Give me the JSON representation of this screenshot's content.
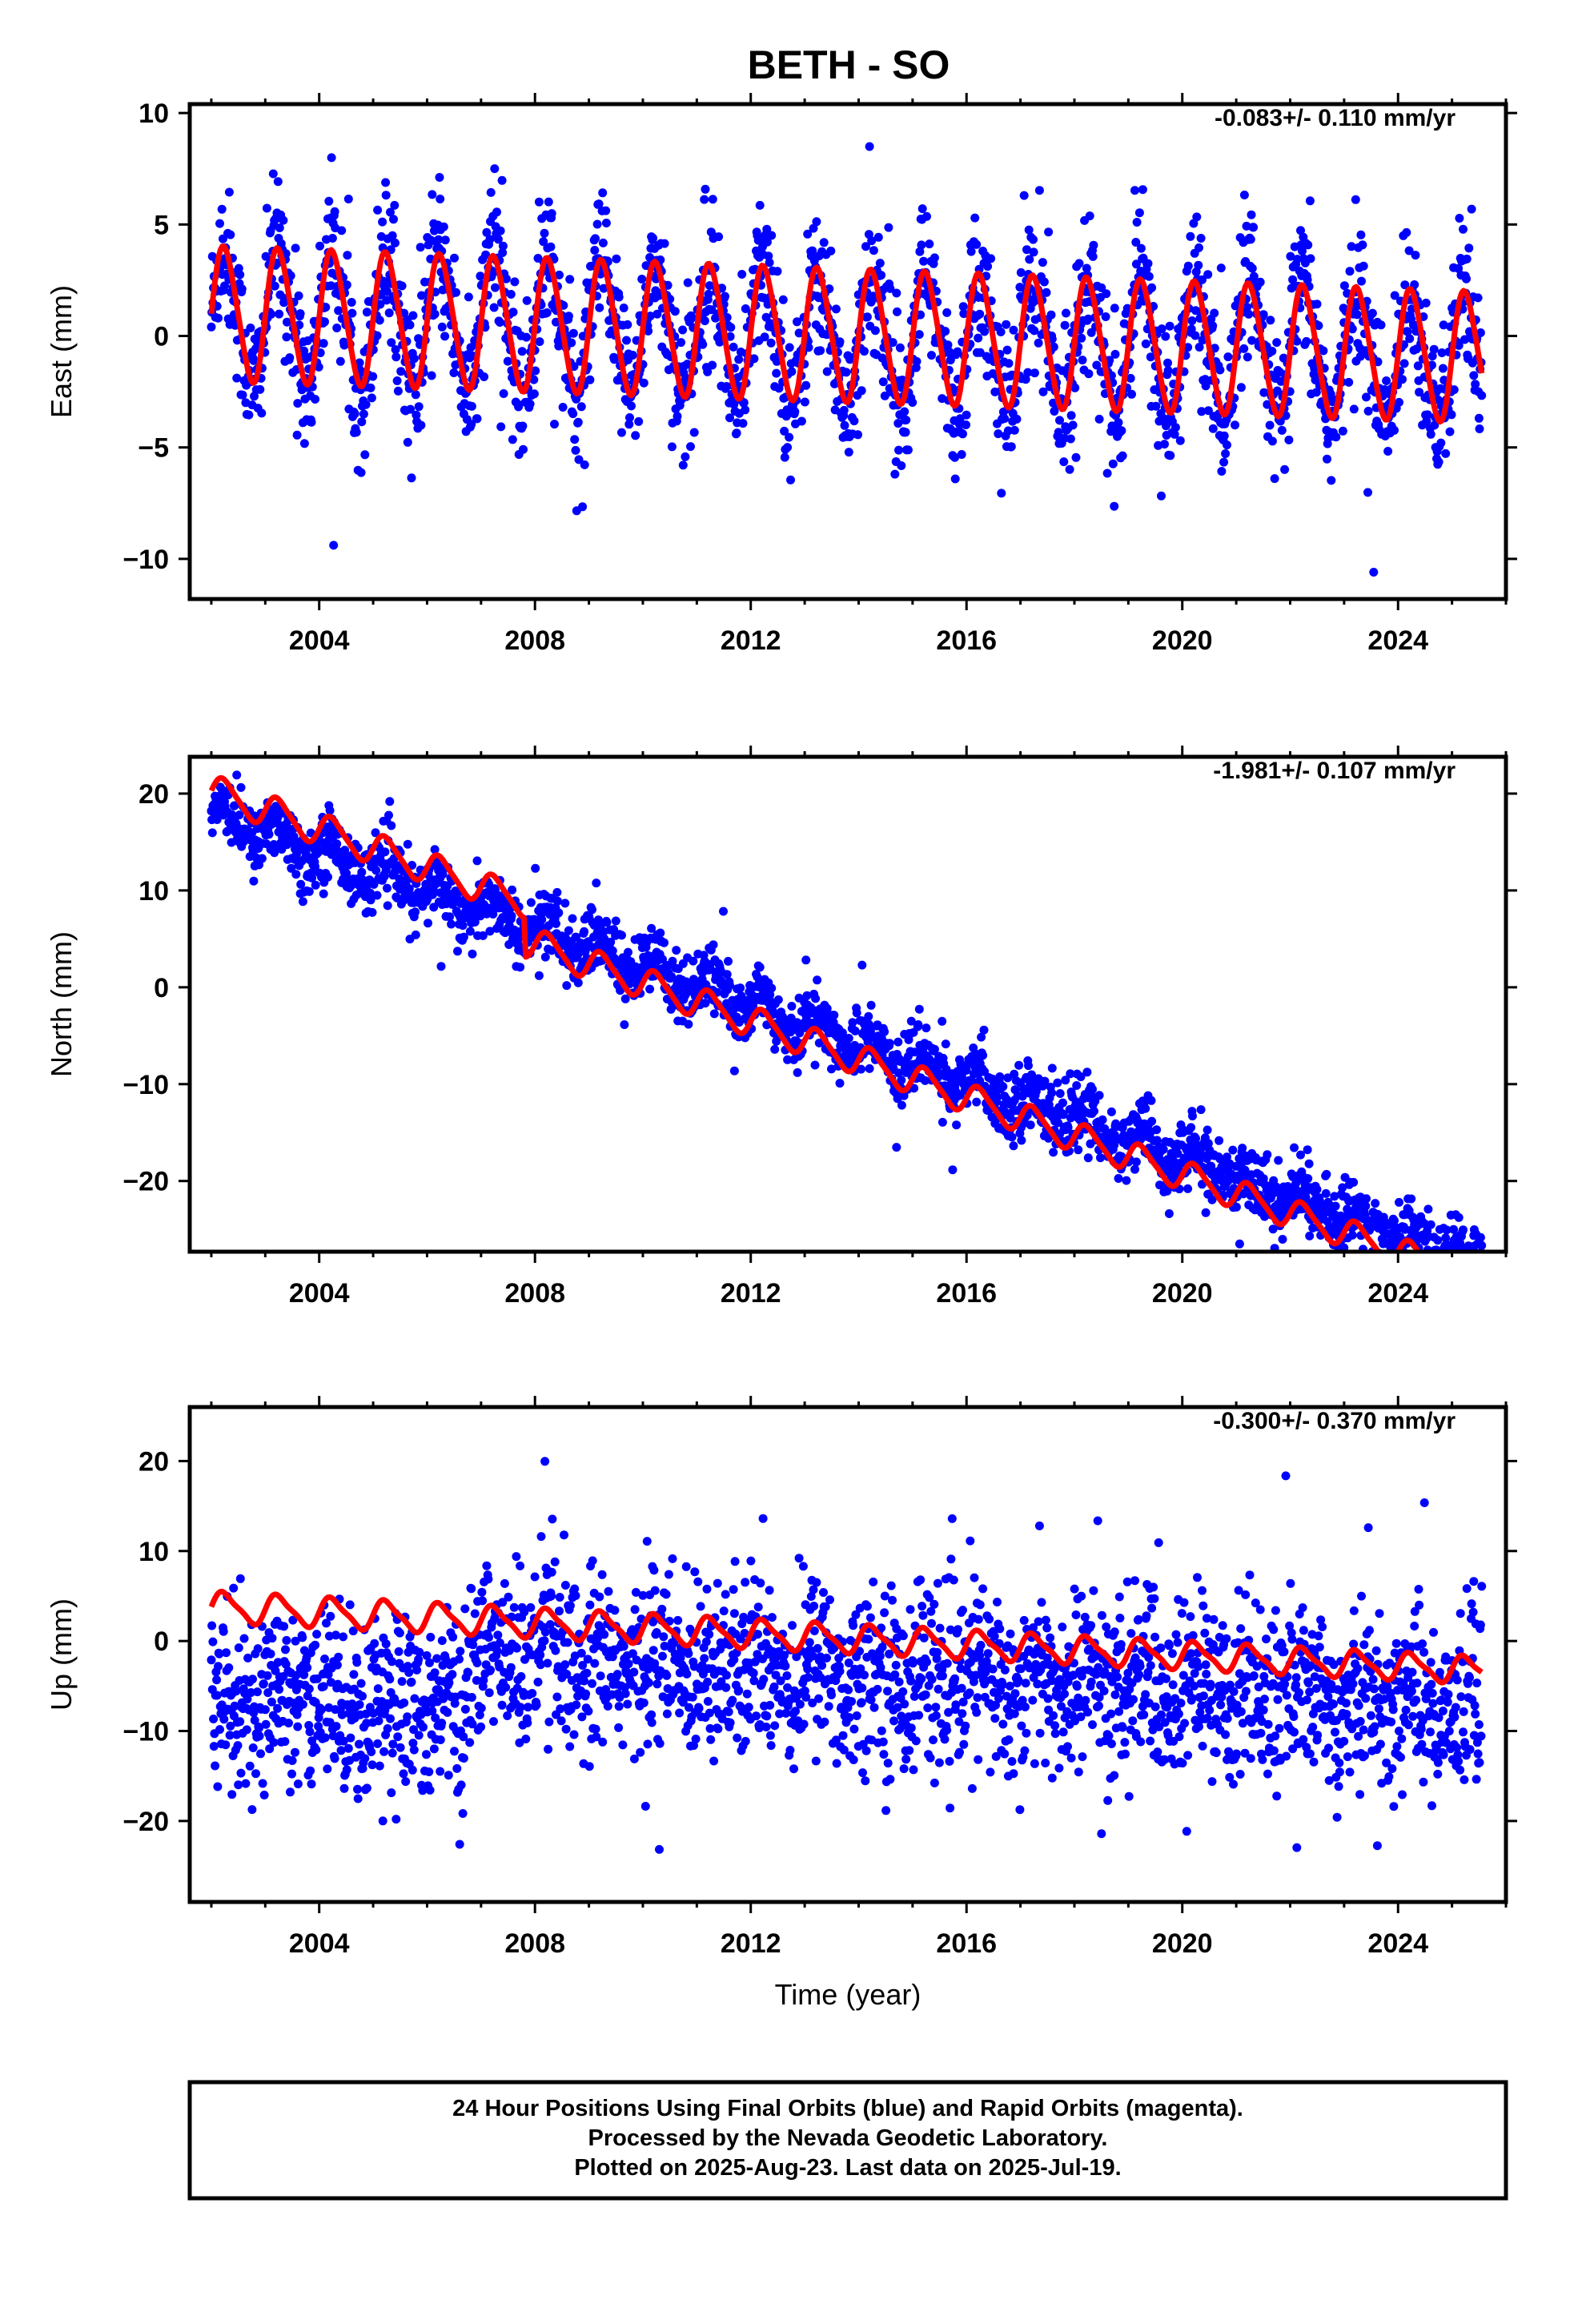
{
  "chart_data": [
    {
      "type": "scatter",
      "title": "BETH - SO",
      "xlabel": "",
      "ylabel": "East (mm)",
      "xlim": [
        2001.6,
        2026.0
      ],
      "ylim": [
        -11.8,
        10.4
      ],
      "xticks": [
        2004,
        2008,
        2012,
        2016,
        2020,
        2024
      ],
      "yticks": [
        -10,
        -5,
        0,
        5,
        10
      ],
      "annotation": "-0.083+/- 0.110 mm/yr",
      "grid": false,
      "series": [
        {
          "color": "#0000ff",
          "kind": "points",
          "start": 2002.0,
          "end": 2025.55,
          "trend_mm_per_yr": -0.083,
          "offset": 0.9,
          "annual_amp": [
            3.0,
            2.9
          ],
          "semiannual_amp": 0.3,
          "scatter": 1.6
        },
        {
          "color": "#ff0000",
          "kind": "fit-line",
          "start": 2002.0,
          "end": 2025.55,
          "trend_mm_per_yr": -0.083,
          "offset": 1.0,
          "annual_amp": [
            3.0,
            2.9
          ],
          "semiannual_amp": 0.3
        }
      ]
    },
    {
      "type": "scatter",
      "title": "",
      "xlabel": "",
      "ylabel": "North (mm)",
      "xlim": [
        2001.6,
        2026.0
      ],
      "ylim": [
        -27.3,
        23.8
      ],
      "xticks": [
        2004,
        2008,
        2012,
        2016,
        2020,
        2024
      ],
      "yticks": [
        -20,
        -10,
        0,
        10,
        20
      ],
      "annotation": "-1.981+/- 0.107 mm/yr",
      "grid": false,
      "series": [
        {
          "color": "#0000ff",
          "kind": "points",
          "start": 2002.0,
          "end": 2025.55,
          "trend_mm_per_yr": -1.981,
          "offset": 18.0,
          "annual_amp": [
            1.5,
            1.3
          ],
          "semiannual_amp": 0.2,
          "scatter": 1.7
        },
        {
          "color": "#ff0000",
          "kind": "fit-line",
          "start": 2002.0,
          "end": 2025.55,
          "trend_mm_per_yr": -1.981,
          "offset": 20.3,
          "annual_amp": [
            1.6,
            1.4
          ],
          "semiannual_amp": 0.3,
          "step_year": 2007.8,
          "step_mm": -4.0
        }
      ]
    },
    {
      "type": "scatter",
      "title": "",
      "xlabel": "Time (year)",
      "ylabel": "Up (mm)",
      "xlim": [
        2001.6,
        2026.0
      ],
      "ylim": [
        -29.0,
        26.0
      ],
      "xticks": [
        2004,
        2008,
        2012,
        2016,
        2020,
        2024
      ],
      "yticks": [
        -20,
        -10,
        0,
        10,
        20
      ],
      "annotation": "-0.300+/- 0.370 mm/yr",
      "grid": false,
      "series": [
        {
          "color": "#0000ff",
          "kind": "points",
          "start": 2002.0,
          "end": 2025.55,
          "trend_mm_per_yr": -0.3,
          "offset": 0.0,
          "annual_amp": [
            1.6,
            1.4
          ],
          "semiannual_amp": 0.3,
          "scatter": 5.0,
          "early_offset": -6.0,
          "early_end": 2006.8
        },
        {
          "color": "#ff0000",
          "kind": "fit-line",
          "start": 2002.0,
          "end": 2025.55,
          "trend_mm_per_yr": -0.3,
          "offset": 3.8,
          "annual_amp": [
            1.6,
            1.4
          ],
          "semiannual_amp": 0.4
        }
      ]
    }
  ],
  "footer": {
    "line1": "24 Hour Positions Using Final Orbits (blue) and Rapid Orbits (magenta).",
    "line2": "Processed by the Nevada Geodetic Laboratory.",
    "line3": "Plotted on 2025-Aug-23. Last data on 2025-Jul-19."
  }
}
